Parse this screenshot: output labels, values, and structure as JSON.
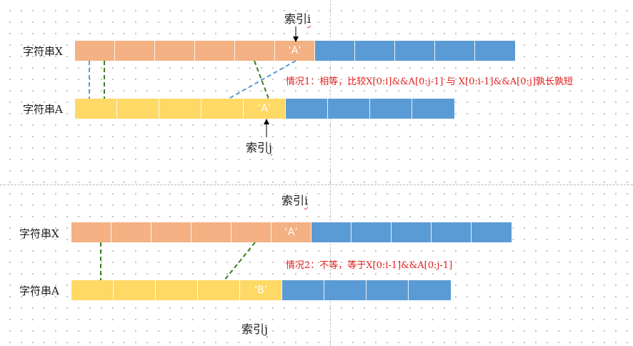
{
  "colors": {
    "x_prefix": "#f4b183",
    "a_prefix": "#ffd966",
    "suffix": "#5b9bd5",
    "case_text": "#e02020"
  },
  "labels": {
    "string_x": "字符串X",
    "string_a": "字符串A"
  },
  "index": {
    "prefix": "索引",
    "i": "i",
    "j": "j"
  },
  "case1": {
    "x_char": "‘A’",
    "a_char": "‘A’",
    "text": "情况1：相等，比较X[0:i]&&A[0:j-1] 与 X[0:i-1]&&A[0:j]孰长孰短"
  },
  "case2": {
    "x_char": "‘A’",
    "a_char": "‘B’",
    "text": "情况2：不等，等于X[0:i-1]&&A[0:j-1]"
  }
}
